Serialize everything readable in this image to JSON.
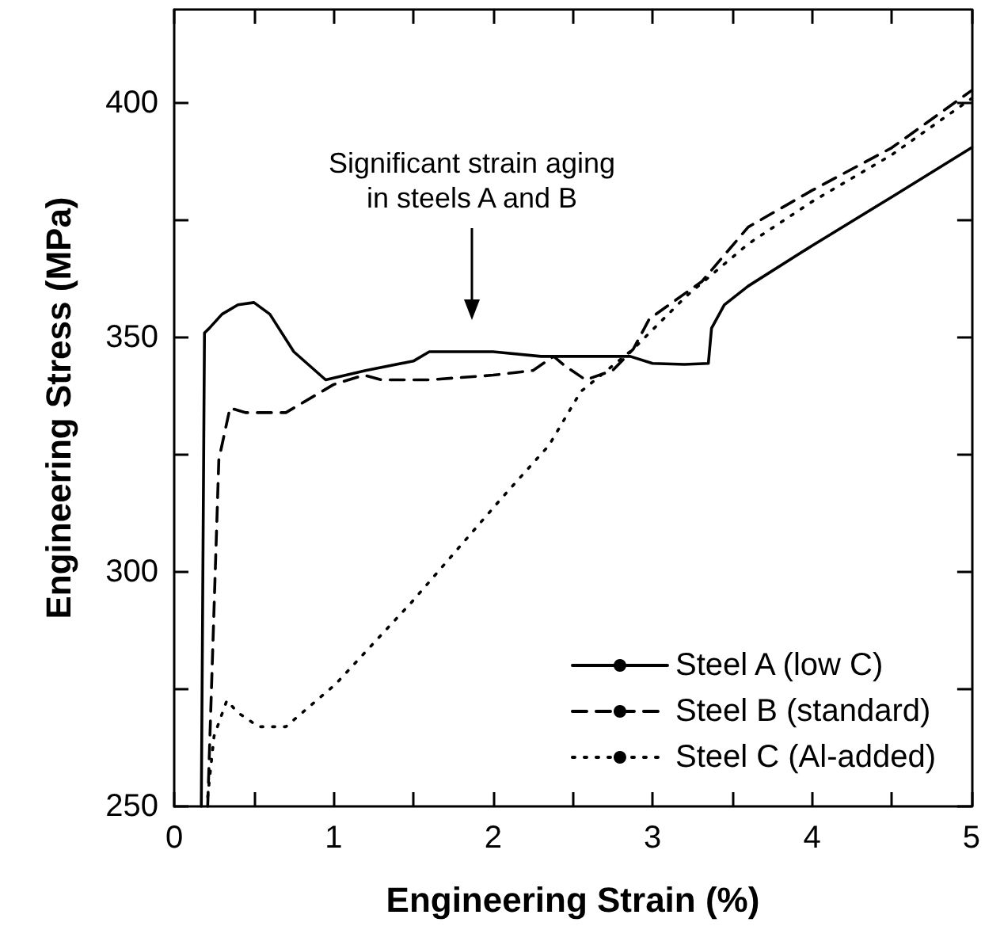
{
  "chart_data": {
    "type": "line",
    "xlabel": "Engineering Strain (%)",
    "ylabel": "Engineering Stress (MPa)",
    "xlim": [
      0,
      5
    ],
    "ylim": [
      250,
      420
    ],
    "xticks": [
      0,
      {
        "value": 0.5,
        "label": null
      },
      1,
      {
        "value": 1.5,
        "label": null
      },
      2,
      {
        "value": 2.5,
        "label": null
      },
      3,
      {
        "value": 3.5,
        "label": null
      },
      4,
      {
        "value": 4.5,
        "label": null
      },
      5
    ],
    "yticks": [
      250,
      {
        "value": 275,
        "label": null
      },
      300,
      {
        "value": 325,
        "label": null
      },
      350,
      {
        "value": 375,
        "label": null
      },
      400
    ],
    "grid": false,
    "legend": "bottom right",
    "marker": "none",
    "annotations": [
      "Significant strain aging\nin steels A and B"
    ],
    "series": [
      {
        "name": "Steel A (low C)",
        "color": "#000000",
        "line_style": "solid",
        "x": [
          0.17,
          0.19,
          0.22,
          0.3,
          0.4,
          0.5,
          0.6,
          0.75,
          0.95,
          1.2,
          1.5,
          1.6,
          2.0,
          2.3,
          2.86,
          3.0,
          3.2,
          3.35,
          3.37,
          3.45,
          3.6,
          4.0,
          4.5,
          5.0
        ],
        "values": [
          250,
          351,
          352,
          355,
          357,
          357.5,
          355,
          347,
          341,
          343,
          345,
          347,
          347,
          346,
          346,
          344.5,
          344.3,
          344.5,
          352,
          357,
          361,
          369.6,
          380,
          390.5
        ]
      },
      {
        "name": "Steel B (standard)",
        "color": "#000000",
        "line_style": "dashed",
        "x": [
          0.21,
          0.28,
          0.35,
          0.45,
          0.7,
          1.0,
          1.19,
          1.3,
          1.6,
          2.0,
          2.25,
          2.38,
          2.45,
          2.58,
          2.75,
          2.88,
          2.98,
          3.31,
          3.6,
          4.0,
          4.5,
          5.0
        ],
        "values": [
          250,
          324,
          335,
          334,
          334,
          340,
          342,
          341,
          341,
          342,
          343,
          346,
          344,
          341,
          343,
          347.6,
          354,
          362,
          373.6,
          381.4,
          390.5,
          402.7
        ]
      },
      {
        "name": "Steel C (Al-added)",
        "color": "#000000",
        "line_style": "dotted",
        "x": [
          0.21,
          0.25,
          0.33,
          0.4,
          0.53,
          0.7,
          1.01,
          1.49,
          2.06,
          2.35,
          2.55,
          2.88,
          3.21,
          3.6,
          4.0,
          4.5,
          5.0
        ],
        "values": [
          252,
          265,
          272.6,
          270,
          267,
          267,
          276,
          293.6,
          316,
          327,
          338.5,
          347.6,
          358.8,
          370,
          379,
          389,
          401
        ]
      }
    ]
  }
}
